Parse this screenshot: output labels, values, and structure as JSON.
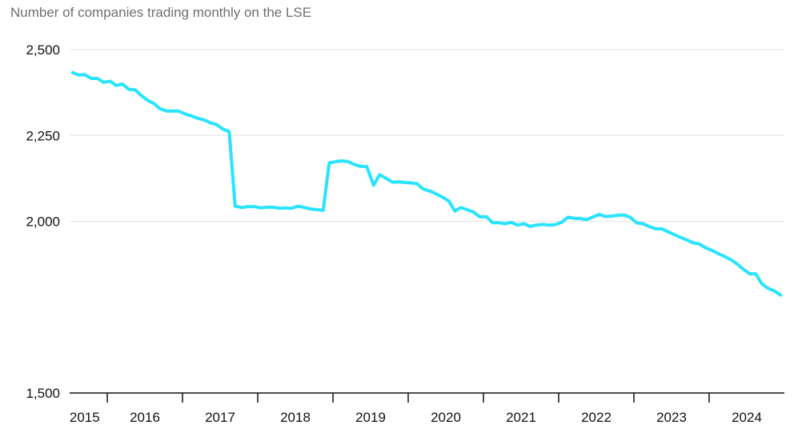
{
  "chart_data": {
    "type": "line",
    "title": "Number of companies trading monthly on the LSE",
    "xlabel": "",
    "ylabel": "",
    "ylim": [
      1500,
      2500
    ],
    "yticks": [
      {
        "value": 1500,
        "label": "1,500"
      },
      {
        "value": 2000,
        "label": "2,000"
      },
      {
        "value": 2250,
        "label": "2,250"
      },
      {
        "value": 2500,
        "label": "2,500"
      }
    ],
    "xlim": [
      2015.0,
      2024.5
    ],
    "xtick_positions": [
      2015.5,
      2016.5,
      2017.5,
      2018.5,
      2019.5,
      2020.5,
      2021.5,
      2022.5,
      2023.5
    ],
    "xticks": [
      {
        "value": 2015.2,
        "label": "2015"
      },
      {
        "value": 2016.0,
        "label": "2016"
      },
      {
        "value": 2017.0,
        "label": "2017"
      },
      {
        "value": 2018.0,
        "label": "2018"
      },
      {
        "value": 2019.0,
        "label": "2019"
      },
      {
        "value": 2020.0,
        "label": "2020"
      },
      {
        "value": 2021.0,
        "label": "2021"
      },
      {
        "value": 2022.0,
        "label": "2022"
      },
      {
        "value": 2023.0,
        "label": "2023"
      },
      {
        "value": 2024.0,
        "label": "2024"
      }
    ],
    "grid": true,
    "line_color": "#29e3ff",
    "series": [
      {
        "x": [
          2015.04,
          2015.12,
          2015.2,
          2015.29,
          2015.37,
          2015.45,
          2015.54,
          2015.62,
          2015.7,
          2015.79,
          2015.87,
          2015.95,
          2016.04,
          2016.12,
          2016.2,
          2016.29,
          2016.37,
          2016.45,
          2016.54,
          2016.62,
          2016.7,
          2016.79,
          2016.87,
          2016.95,
          2017.04,
          2017.12,
          2017.2,
          2017.29,
          2017.37,
          2017.45,
          2017.54,
          2017.62,
          2017.7,
          2017.79,
          2017.87,
          2017.95,
          2018.04,
          2018.12,
          2018.2,
          2018.29,
          2018.37,
          2018.45,
          2018.54,
          2018.62,
          2018.7,
          2018.79,
          2018.87,
          2018.95,
          2019.04,
          2019.12,
          2019.2,
          2019.29,
          2019.37,
          2019.45,
          2019.54,
          2019.62,
          2019.7,
          2019.79,
          2019.87,
          2019.95,
          2020.04,
          2020.12,
          2020.2,
          2020.29,
          2020.37,
          2020.45,
          2020.54,
          2020.62,
          2020.7,
          2020.79,
          2020.87,
          2020.95,
          2021.04,
          2021.12,
          2021.2,
          2021.29,
          2021.37,
          2021.45,
          2021.54,
          2021.62,
          2021.7,
          2021.79,
          2021.87,
          2021.95,
          2022.04,
          2022.12,
          2022.2,
          2022.29,
          2022.37,
          2022.45,
          2022.54,
          2022.62,
          2022.7,
          2022.79,
          2022.87,
          2022.95,
          2023.04,
          2023.12,
          2023.2,
          2023.29,
          2023.37,
          2023.45,
          2023.54,
          2023.62,
          2023.7,
          2023.79,
          2023.87,
          2023.95,
          2024.04,
          2024.12,
          2024.2,
          2024.29,
          2024.37,
          2024.45
        ],
        "values": [
          2433,
          2426,
          2427,
          2416,
          2416,
          2405,
          2408,
          2395,
          2400,
          2384,
          2383,
          2367,
          2352,
          2343,
          2328,
          2321,
          2321,
          2321,
          2312,
          2307,
          2300,
          2295,
          2287,
          2282,
          2268,
          2262,
          2044,
          2040,
          2043,
          2043,
          2039,
          2041,
          2041,
          2038,
          2039,
          2038,
          2044,
          2040,
          2036,
          2034,
          2032,
          2170,
          2174,
          2176,
          2174,
          2165,
          2160,
          2159,
          2105,
          2136,
          2126,
          2114,
          2115,
          2113,
          2112,
          2109,
          2094,
          2088,
          2080,
          2071,
          2059,
          2030,
          2040,
          2033,
          2027,
          2013,
          2013,
          1996,
          1996,
          1993,
          1997,
          1989,
          1993,
          1985,
          1989,
          1991,
          1989,
          1990,
          1997,
          2012,
          2009,
          2008,
          2005,
          2012,
          2020,
          2014,
          2015,
          2018,
          2018,
          2012,
          1995,
          1993,
          1985,
          1978,
          1978,
          1970,
          1961,
          1953,
          1946,
          1937,
          1934,
          1923,
          1915,
          1906,
          1898,
          1888,
          1876,
          1861,
          1847,
          1847,
          1818,
          1804,
          1797,
          1785
        ]
      }
    ]
  }
}
